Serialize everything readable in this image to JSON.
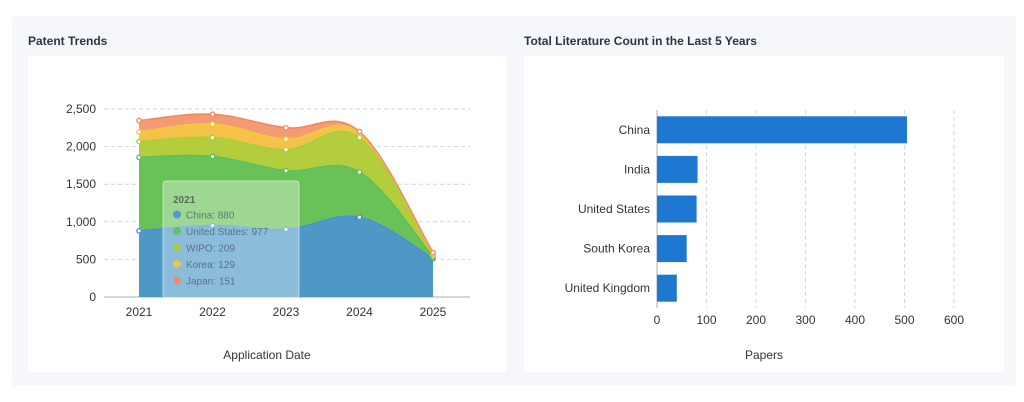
{
  "cards": {
    "left_title": "Patent Trends",
    "right_title": "Total Literature Count in the Last 5 Years"
  },
  "chart_data": [
    {
      "type": "area",
      "title": "Patent Trends",
      "xlabel": "Application Date",
      "ylabel": "",
      "categories": [
        "2021",
        "2022",
        "2023",
        "2024",
        "2025"
      ],
      "ylim": [
        0,
        2500
      ],
      "yticks": [
        0,
        500,
        1000,
        1500,
        2000,
        2500
      ],
      "ytick_labels": [
        "0",
        "500",
        "1,000",
        "1,500",
        "2,000",
        "2,500"
      ],
      "stacked": true,
      "grid": true,
      "series": [
        {
          "name": "China",
          "values": [
            880,
            950,
            900,
            1060,
            510
          ],
          "color": "#4a90d9"
        },
        {
          "name": "United States",
          "values": [
            977,
            920,
            780,
            600,
            20
          ],
          "color": "#5cbf5c"
        },
        {
          "name": "WIPO",
          "values": [
            209,
            250,
            280,
            460,
            20
          ],
          "color": "#a8cf3a"
        },
        {
          "name": "Korea",
          "values": [
            129,
            180,
            140,
            60,
            20
          ],
          "color": "#f5c842"
        },
        {
          "name": "Japan",
          "values": [
            151,
            130,
            150,
            20,
            20
          ],
          "color": "#f08a5d"
        }
      ],
      "tooltip": {
        "title": "2021",
        "rows": [
          {
            "label": "China",
            "value": "880",
            "color": "#4a90d9"
          },
          {
            "label": "United States",
            "value": "977",
            "color": "#5cbf5c"
          },
          {
            "label": "WIPO",
            "value": "209",
            "color": "#a8cf3a"
          },
          {
            "label": "Korea",
            "value": "129",
            "color": "#f5c842"
          },
          {
            "label": "Japan",
            "value": "151",
            "color": "#f08a5d"
          }
        ]
      }
    },
    {
      "type": "bar",
      "orientation": "horizontal",
      "title": "Total Literature Count in the Last 5 Years",
      "xlabel": "Papers",
      "ylabel": "",
      "categories": [
        "China",
        "India",
        "United States",
        "South Korea",
        "United Kingdom"
      ],
      "values": [
        505,
        82,
        80,
        60,
        40
      ],
      "xlim": [
        0,
        600
      ],
      "xticks": [
        0,
        100,
        200,
        300,
        400,
        500,
        600
      ],
      "grid": true,
      "color": "#1e78d2"
    }
  ]
}
